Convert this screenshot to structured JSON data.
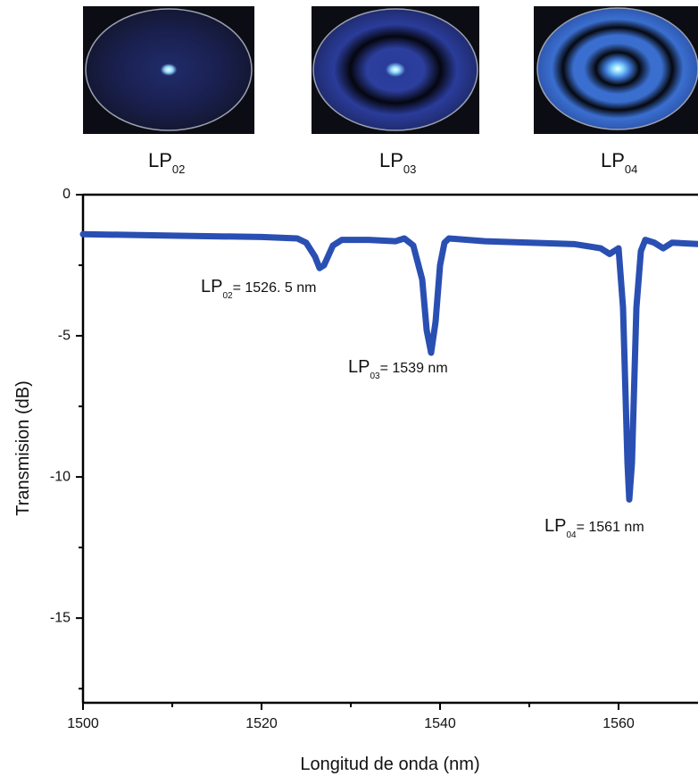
{
  "chart_data": {
    "type": "line",
    "xlabel": "Longitud de onda (nm)",
    "ylabel": "Transmision (dB)",
    "xlim": [
      1500,
      1569
    ],
    "ylim": [
      -18,
      0
    ],
    "xticks": [
      1500,
      1520,
      1540,
      1560
    ],
    "yticks": [
      0,
      -5,
      -10,
      -15
    ],
    "xminorticks": [
      1510,
      1530,
      1550
    ],
    "yminorticks": [
      -2.5,
      -7.5,
      -12.5,
      -17.5
    ],
    "x": [
      1500,
      1510,
      1520,
      1524,
      1525,
      1526,
      1526.5,
      1527,
      1528,
      1529,
      1532,
      1535,
      1536,
      1537,
      1538,
      1538.5,
      1539,
      1539.5,
      1540,
      1540.5,
      1541,
      1545,
      1550,
      1555,
      1557,
      1558,
      1559,
      1559.5,
      1560,
      1560.5,
      1561,
      1561.2,
      1561.5,
      1562,
      1562.5,
      1563,
      1564,
      1565,
      1566,
      1569
    ],
    "series": [
      {
        "color": "#2a4fb3",
        "values": [
          -1.4,
          -1.45,
          -1.5,
          -1.55,
          -1.7,
          -2.2,
          -2.6,
          -2.5,
          -1.8,
          -1.6,
          -1.6,
          -1.65,
          -1.55,
          -1.8,
          -3.0,
          -4.8,
          -5.6,
          -4.5,
          -2.5,
          -1.7,
          -1.55,
          -1.65,
          -1.7,
          -1.75,
          -1.85,
          -1.9,
          -2.1,
          -2.0,
          -1.9,
          -4.0,
          -9.5,
          -10.8,
          -9.5,
          -4.0,
          -2.0,
          -1.6,
          -1.7,
          -1.9,
          -1.7,
          -1.75
        ]
      }
    ],
    "annotations": [
      {
        "text": "LP",
        "sub": "02",
        "rest": "= 1526. 5 nm"
      },
      {
        "text": "LP",
        "sub": "03",
        "rest": "= 1539 nm"
      },
      {
        "text": "LP",
        "sub": "04",
        "rest": "= 1561 nm"
      }
    ],
    "modes": [
      {
        "text": "LP",
        "sub": "02"
      },
      {
        "text": "LP",
        "sub": "03"
      },
      {
        "text": "LP",
        "sub": "04"
      }
    ]
  }
}
